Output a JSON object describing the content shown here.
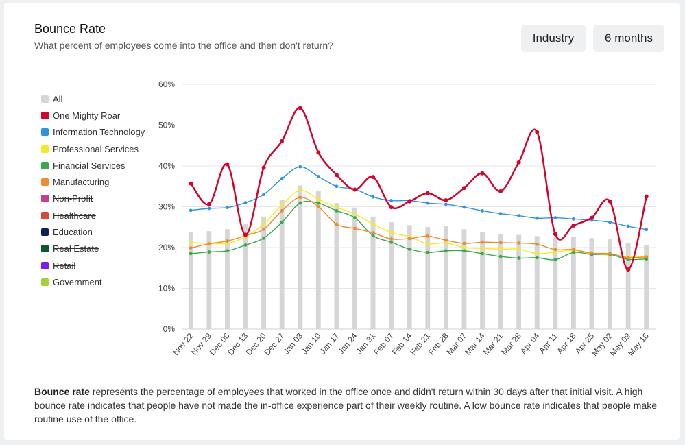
{
  "header": {
    "title": "Bounce Rate",
    "subtitle": "What percent of employees come into the office and then don't return?"
  },
  "controls": {
    "industry_label": "Industry",
    "period_label": "6 months"
  },
  "legend": [
    {
      "label": "All",
      "color": "#d6d6d6",
      "active": true
    },
    {
      "label": "One Mighty Roar",
      "color": "#d4042d",
      "active": true
    },
    {
      "label": "Information Technology",
      "color": "#2f94dd",
      "active": true
    },
    {
      "label": "Professional Services",
      "color": "#f5e92b",
      "active": true
    },
    {
      "label": "Financial Services",
      "color": "#3aa84a",
      "active": true
    },
    {
      "label": "Manufacturing",
      "color": "#ef8a2e",
      "active": true
    },
    {
      "label": "Non-Profit",
      "color": "#c2408f",
      "active": false
    },
    {
      "label": "Healthcare",
      "color": "#d6493a",
      "active": false
    },
    {
      "label": "Education",
      "color": "#0c1f5c",
      "active": false
    },
    {
      "label": "Real Estate",
      "color": "#0c5a2c",
      "active": false
    },
    {
      "label": "Retail",
      "color": "#7a1ff0",
      "active": false
    },
    {
      "label": "Government",
      "color": "#a6cf3a",
      "active": false
    }
  ],
  "footnote": {
    "term": "Bounce rate",
    "text": " represents the percentage of employees that worked in the office once and didn't return within 30 days after that initial visit. A high bounce rate indicates that people have not made the in-office experience part of their weekly routine. A low bounce rate indicates that people make routine use of the office."
  },
  "chart_data": {
    "type": "bar",
    "title": "",
    "xlabel": "",
    "ylabel": "",
    "ylim": [
      0,
      60
    ],
    "yticks": [
      "0%",
      "10%",
      "20%",
      "30%",
      "40%",
      "50%",
      "60%"
    ],
    "grid": true,
    "legend_position": "left",
    "categories": [
      "Nov 22",
      "Nov 29",
      "Dec 06",
      "Dec 13",
      "Dec 20",
      "Dec 27",
      "Jan 03",
      "Jan 10",
      "Jan 17",
      "Jan 24",
      "Jan 31",
      "Feb 07",
      "Feb 14",
      "Feb 21",
      "Feb 28",
      "Mar 07",
      "Mar 14",
      "Mar 21",
      "Mar 28",
      "Apr 04",
      "Apr 11",
      "Apr 18",
      "Apr 25",
      "May 02",
      "May 09",
      "May 16"
    ],
    "bars": {
      "name": "All",
      "color": "#d6d6d6",
      "values": [
        23.8,
        24.0,
        24.5,
        25.7,
        27.6,
        31.7,
        35.2,
        33.8,
        30.9,
        29.8,
        27.6,
        26.2,
        25.5,
        25.0,
        25.2,
        24.5,
        23.8,
        23.3,
        23.1,
        22.8,
        22.5,
        22.7,
        22.3,
        22.0,
        21.2,
        20.6
      ]
    },
    "series": [
      {
        "name": "One Mighty Roar",
        "color": "#d4042d",
        "width": 2.5,
        "values": [
          35.7,
          30.6,
          40.4,
          23.1,
          39.6,
          46.1,
          54.2,
          43.3,
          37.8,
          34.2,
          37.3,
          29.9,
          31.3,
          33.3,
          31.6,
          34.6,
          38.2,
          33.8,
          40.9,
          48.3,
          23.3,
          25.4,
          27.3,
          31.3,
          14.6,
          32.5
        ]
      },
      {
        "name": "Information Technology",
        "color": "#2f94dd",
        "width": 1.4,
        "values": [
          29.1,
          29.6,
          29.8,
          31.0,
          33.0,
          36.9,
          39.8,
          37.4,
          35.0,
          34.3,
          32.4,
          31.5,
          31.5,
          30.9,
          30.6,
          29.9,
          29.0,
          28.3,
          27.8,
          27.2,
          27.3,
          27.0,
          26.7,
          26.2,
          25.2,
          24.4
        ]
      },
      {
        "name": "Professional Services",
        "color": "#f5e92b",
        "width": 1.4,
        "values": [
          21.2,
          21.0,
          21.0,
          22.6,
          25.8,
          30.4,
          34.0,
          31.8,
          29.9,
          28.2,
          25.8,
          23.7,
          22.6,
          20.9,
          21.1,
          20.0,
          19.8,
          19.6,
          19.6,
          18.5,
          18.9,
          19.3,
          18.5,
          18.1,
          17.7,
          17.8
        ]
      },
      {
        "name": "Financial Services",
        "color": "#3aa84a",
        "width": 1.4,
        "values": [
          18.5,
          18.9,
          19.2,
          20.6,
          22.3,
          26.2,
          30.9,
          30.9,
          29.0,
          27.3,
          22.9,
          21.3,
          19.6,
          18.8,
          19.2,
          19.2,
          18.5,
          17.8,
          17.4,
          17.5,
          17.0,
          18.8,
          18.3,
          18.3,
          17.1,
          17.2
        ]
      },
      {
        "name": "Manufacturing",
        "color": "#ef8a2e",
        "width": 1.4,
        "values": [
          19.9,
          20.9,
          21.6,
          22.9,
          24.5,
          29.0,
          32.3,
          30.0,
          25.7,
          24.7,
          23.6,
          22.1,
          22.2,
          22.8,
          21.8,
          21.0,
          21.3,
          21.2,
          21.1,
          20.8,
          19.5,
          19.5,
          18.6,
          18.5,
          17.5,
          17.7
        ]
      }
    ]
  }
}
